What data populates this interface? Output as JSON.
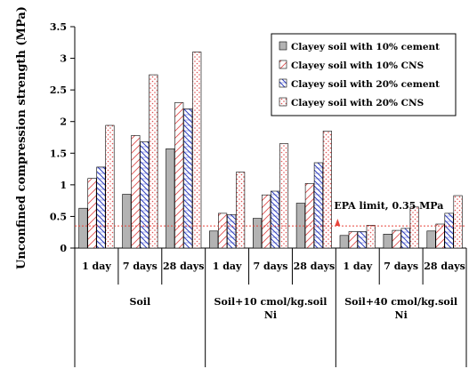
{
  "chart_data": {
    "type": "bar",
    "ylabel": "Unconfined compression strength (MPa)",
    "ylim": [
      0,
      3.5
    ],
    "yticks": [
      "0",
      "0.5",
      "1",
      "1.5",
      "2",
      "2.5",
      "3",
      "3.5"
    ],
    "categories": [
      "1 day",
      "7 days",
      "28 days",
      "1 day",
      "7 days",
      "28 days",
      "1 day",
      "7 days",
      "28 days"
    ],
    "groups": [
      {
        "label_lines": [
          "Soil"
        ],
        "span": [
          0,
          2
        ]
      },
      {
        "label_lines": [
          "Soil+10 cmol/kg.soil",
          "Ni"
        ],
        "span": [
          3,
          5
        ]
      },
      {
        "label_lines": [
          "Soil+40 cmol/kg.soil",
          "Ni"
        ],
        "span": [
          6,
          8
        ]
      }
    ],
    "series": [
      {
        "name": "Clayey soil with 10% cement",
        "fill": "#b3b3b3",
        "pattern": "solid",
        "values": [
          0.63,
          0.85,
          1.57,
          0.27,
          0.47,
          0.71,
          0.2,
          0.22,
          0.27
        ]
      },
      {
        "name": "Clayey soil with 10% CNS",
        "fill": "#ffffff",
        "pattern": "diagonal-red",
        "values": [
          1.1,
          1.78,
          2.3,
          0.55,
          0.84,
          1.02,
          0.26,
          0.28,
          0.38
        ]
      },
      {
        "name": "Clayey soil with 20% cement",
        "fill": "#ffffff",
        "pattern": "hatch-blue",
        "values": [
          1.28,
          1.68,
          2.2,
          0.53,
          0.9,
          1.35,
          0.26,
          0.31,
          0.55
        ]
      },
      {
        "name": "Clayey soil with 20% CNS",
        "fill": "#ffffff",
        "pattern": "dots-red",
        "values": [
          1.94,
          2.74,
          3.1,
          1.2,
          1.65,
          1.85,
          0.36,
          0.65,
          0.83
        ]
      }
    ],
    "reference_line": {
      "value": 0.35,
      "label": "EPA limit, 0.35 MPa",
      "color": "#e8443a"
    },
    "legend_position": "top-right",
    "grid": false
  }
}
